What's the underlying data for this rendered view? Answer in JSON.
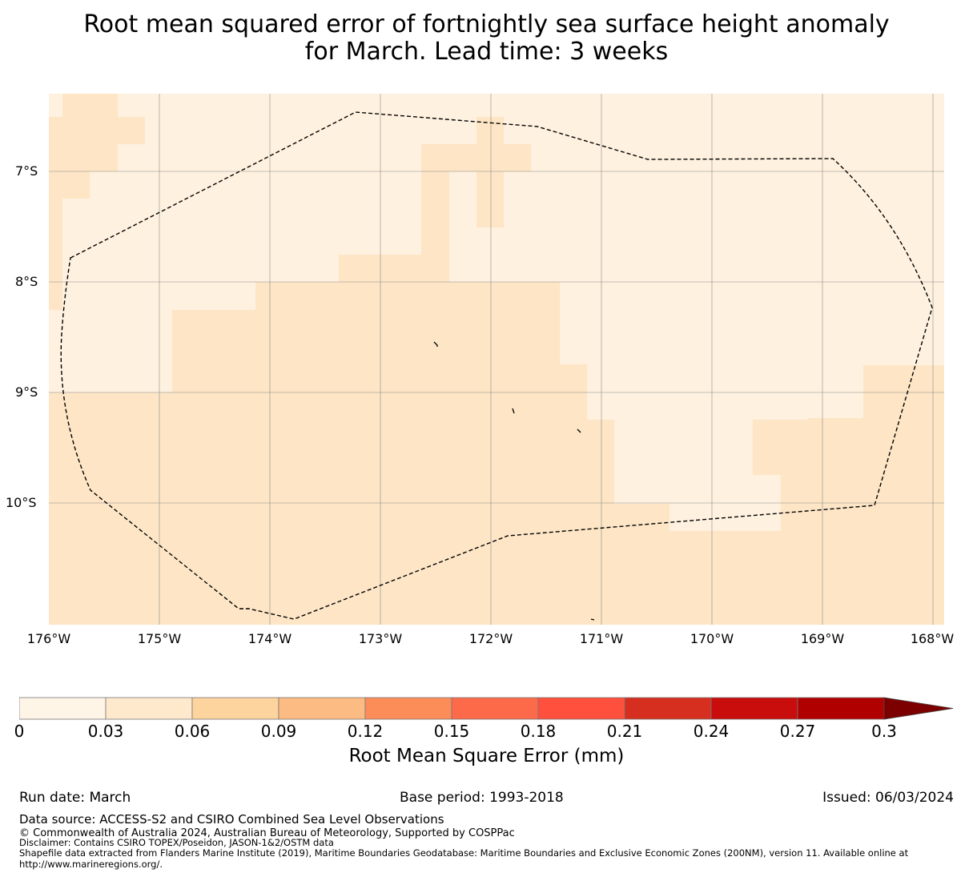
{
  "title": {
    "line1": "Root mean squared error of fortnightly sea surface height anomaly",
    "line2": "for March. Lead time: 3 weeks"
  },
  "map": {
    "latitude_labels": [
      "7°S",
      "8°S",
      "9°S",
      "10°S"
    ],
    "longitude_labels": [
      "176°W",
      "175°W",
      "174°W",
      "173°W",
      "172°W",
      "171°W",
      "170°W",
      "169°W",
      "168°W"
    ],
    "colors": {
      "class_0_003": "#fef1df",
      "class_003_006": "#fde5c6",
      "boundary_line": "#000000",
      "gridline": "#8a8a8a"
    },
    "features": {
      "eez_boundary": "dashed boundary polygon (maritime EEZ)",
      "islands": "small island outlines (black)"
    }
  },
  "colorbar": {
    "ticks": [
      "0",
      "0.03",
      "0.06",
      "0.09",
      "0.12",
      "0.15",
      "0.18",
      "0.21",
      "0.24",
      "0.27",
      "0.3"
    ],
    "colors": [
      "#fff5e6",
      "#fee9cd",
      "#fdd39e",
      "#fdbb84",
      "#fc8d59",
      "#fc6a4a",
      "#ff4f3d",
      "#d62f1f",
      "#c90d0d",
      "#b00000",
      "#7d0000"
    ],
    "label": "Root Mean Square Error (mm)"
  },
  "footer": {
    "run_date": "Run date: March",
    "base_period": "Base period: 1993-2018",
    "issued": "Issued: 06/03/2024",
    "data_source": "Data source: ACCESS-S2 and CSIRO Combined Sea Level Observations",
    "copyright": "© Commonwealth of Australia 2024, Australian Bureau of Meteorology, Supported by COSPPac",
    "disclaimer": "Disclaimer: Contains CSIRO TOPEX/Poseidon, JASON-1&2/OSTM data",
    "shapefile_credit": "Shapefile data extracted from Flanders Marine Institute (2019), Maritime Boundaries Geodatabase: Maritime Boundaries and Exclusive Economic Zones (200NM), version 11. Available online at http://www.marineregions.org/."
  }
}
